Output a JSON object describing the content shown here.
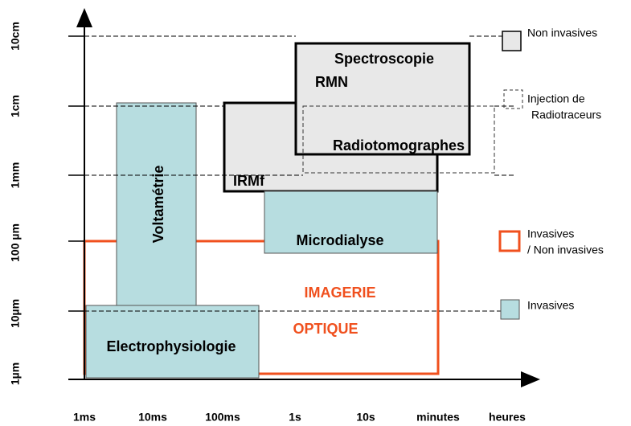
{
  "x_axis": {
    "ticks": [
      "1ms",
      "10ms",
      "100ms",
      "1s",
      "10s",
      "minutes",
      "heures"
    ]
  },
  "y_axis": {
    "ticks": [
      "1µm",
      "10µm",
      "100 µm",
      "1mm",
      "1cm",
      "10cm"
    ]
  },
  "regions": {
    "electrophysiologie": "Electrophysiologie",
    "voltametrie": "Voltamétrie",
    "irmf": "IRMf",
    "microdialyse": "Microdialyse",
    "spectroscopie": [
      "Spectroscopie",
      "RMN"
    ],
    "radiotomographes": "Radiotomographes",
    "imagerie_optique": [
      "IMAGERIE",
      "OPTIQUE"
    ]
  },
  "legend": [
    {
      "label": [
        "Non invasives"
      ]
    },
    {
      "label": [
        "Injection de",
        "Radiotraceurs"
      ]
    },
    {
      "label": [
        "Invasives",
        "/ Non invasives"
      ]
    },
    {
      "label": [
        "Invasives"
      ]
    }
  ]
}
